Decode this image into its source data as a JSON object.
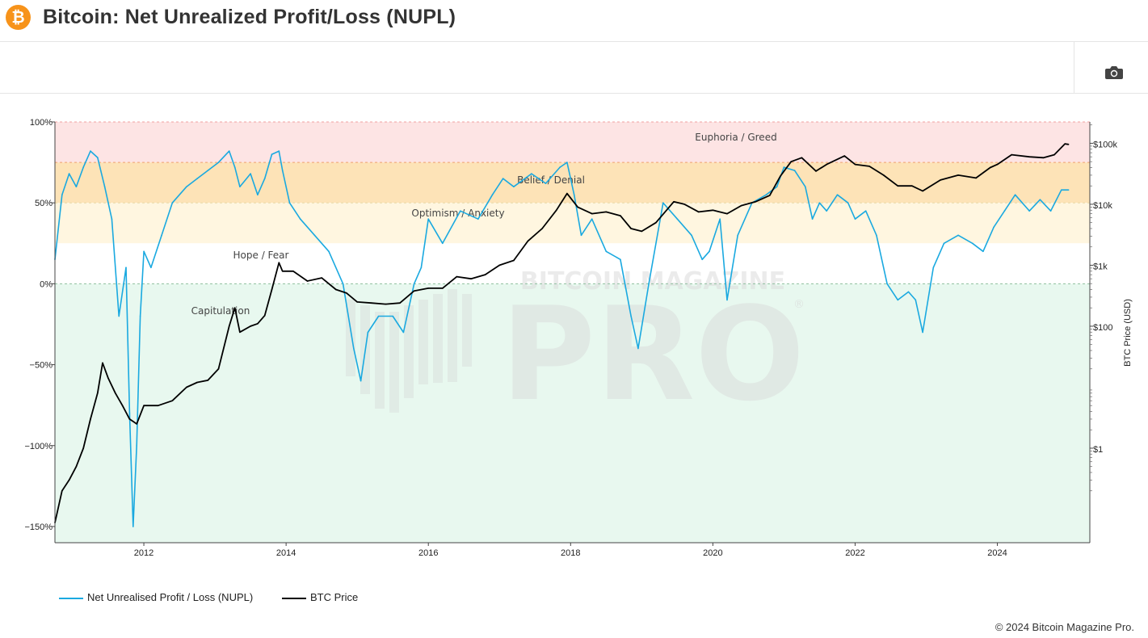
{
  "header": {
    "title": "Bitcoin: Net Unrealized Profit/Loss (NUPL)",
    "logo_glyph": "₿",
    "brand_color": "#f7931a"
  },
  "toolbar": {
    "camera_icon": "camera-icon"
  },
  "chart_data": {
    "type": "line",
    "title": "Bitcoin: Net Unrealized Profit/Loss (NUPL)",
    "x_axis": {
      "ticks": [
        "2012",
        "2014",
        "2016",
        "2018",
        "2020",
        "2022",
        "2024"
      ],
      "range": [
        2010.75,
        2025.3
      ]
    },
    "y_left": {
      "ticks": [
        "100%",
        "50%",
        "0%",
        "−50%",
        "−100%",
        "−150%"
      ],
      "range": [
        -160,
        100
      ]
    },
    "y_right": {
      "label": "BTC Price (USD)",
      "ticks": [
        "$100k",
        "$10k",
        "$1k",
        "$100",
        "$1"
      ],
      "scale": "log",
      "range_log10": [
        -1.55,
        5.35
      ]
    },
    "zones": [
      {
        "name": "Euphoria / Greed",
        "from": 75,
        "to": 100,
        "color": "#fde4e4"
      },
      {
        "name": "Belief / Denial",
        "from": 50,
        "to": 75,
        "color": "#fde3b7"
      },
      {
        "name": "Optimism / Anxiety",
        "from": 25,
        "to": 50,
        "color": "#fff6e0"
      },
      {
        "name": "Hope / Fear",
        "from": 0,
        "to": 25,
        "color": "#ffffff"
      },
      {
        "name": "Capitulation",
        "from": -160,
        "to": 0,
        "color": "#e8f8ef"
      }
    ],
    "series": [
      {
        "name": "Net Unrealised Profit / Loss (NUPL)",
        "color": "#1aa9e0",
        "axis": "left",
        "x": [
          2010.75,
          2010.85,
          2010.95,
          2011.05,
          2011.15,
          2011.25,
          2011.35,
          2011.45,
          2011.55,
          2011.65,
          2011.75,
          2011.8,
          2011.85,
          2011.9,
          2011.95,
          2012.0,
          2012.1,
          2012.25,
          2012.4,
          2012.6,
          2012.75,
          2012.9,
          2013.05,
          2013.2,
          2013.28,
          2013.35,
          2013.5,
          2013.6,
          2013.7,
          2013.8,
          2013.9,
          2013.95,
          2014.05,
          2014.2,
          2014.4,
          2014.6,
          2014.8,
          2014.95,
          2015.05,
          2015.15,
          2015.3,
          2015.5,
          2015.65,
          2015.8,
          2015.9,
          2016.0,
          2016.2,
          2016.45,
          2016.7,
          2016.9,
          2017.05,
          2017.2,
          2017.45,
          2017.65,
          2017.85,
          2017.95,
          2018.05,
          2018.15,
          2018.3,
          2018.5,
          2018.7,
          2018.85,
          2018.95,
          2019.1,
          2019.3,
          2019.5,
          2019.7,
          2019.85,
          2019.95,
          2020.1,
          2020.2,
          2020.35,
          2020.55,
          2020.75,
          2020.9,
          2021.0,
          2021.15,
          2021.3,
          2021.4,
          2021.5,
          2021.6,
          2021.75,
          2021.9,
          2022.0,
          2022.15,
          2022.3,
          2022.45,
          2022.6,
          2022.75,
          2022.85,
          2022.95,
          2023.1,
          2023.25,
          2023.45,
          2023.65,
          2023.8,
          2023.95,
          2024.1,
          2024.25,
          2024.45,
          2024.6,
          2024.75,
          2024.9,
          2025.0
        ],
        "y": [
          15,
          55,
          68,
          60,
          72,
          82,
          78,
          60,
          40,
          -20,
          10,
          -80,
          -150,
          -100,
          -20,
          20,
          10,
          30,
          50,
          60,
          65,
          70,
          75,
          82,
          72,
          60,
          68,
          55,
          65,
          80,
          82,
          70,
          50,
          40,
          30,
          20,
          0,
          -40,
          -60,
          -30,
          -20,
          -20,
          -30,
          0,
          10,
          40,
          25,
          45,
          40,
          55,
          65,
          60,
          68,
          62,
          72,
          75,
          55,
          30,
          40,
          20,
          15,
          -20,
          -40,
          0,
          50,
          40,
          30,
          15,
          20,
          40,
          -10,
          30,
          50,
          55,
          60,
          72,
          70,
          60,
          40,
          50,
          45,
          55,
          50,
          40,
          45,
          30,
          0,
          -10,
          -5,
          -10,
          -30,
          10,
          25,
          30,
          25,
          20,
          35,
          45,
          55,
          45,
          52,
          45,
          58,
          58
        ]
      },
      {
        "name": "BTC Price",
        "color": "#000000",
        "axis": "right",
        "x": [
          2010.75,
          2010.85,
          2010.95,
          2011.05,
          2011.15,
          2011.25,
          2011.35,
          2011.42,
          2011.5,
          2011.6,
          2011.7,
          2011.8,
          2011.9,
          2012.0,
          2012.2,
          2012.4,
          2012.6,
          2012.75,
          2012.9,
          2013.05,
          2013.2,
          2013.28,
          2013.35,
          2013.5,
          2013.6,
          2013.7,
          2013.8,
          2013.9,
          2013.95,
          2014.1,
          2014.3,
          2014.5,
          2014.7,
          2014.85,
          2015.0,
          2015.2,
          2015.4,
          2015.6,
          2015.8,
          2016.0,
          2016.2,
          2016.4,
          2016.6,
          2016.8,
          2017.0,
          2017.2,
          2017.4,
          2017.6,
          2017.8,
          2017.95,
          2018.1,
          2018.3,
          2018.5,
          2018.7,
          2018.85,
          2019.0,
          2019.2,
          2019.45,
          2019.6,
          2019.8,
          2020.0,
          2020.2,
          2020.4,
          2020.6,
          2020.8,
          2020.95,
          2021.1,
          2021.25,
          2021.45,
          2021.6,
          2021.85,
          2022.0,
          2022.2,
          2022.4,
          2022.6,
          2022.8,
          2022.95,
          2023.2,
          2023.45,
          2023.7,
          2023.9,
          2024.0,
          2024.2,
          2024.45,
          2024.65,
          2024.8,
          2024.95,
          2025.0
        ],
        "y": [
          0.06,
          0.2,
          0.3,
          0.5,
          1,
          3,
          8,
          25,
          14,
          8,
          5,
          3,
          2.5,
          5,
          5,
          6,
          10,
          12,
          13,
          20,
          100,
          200,
          80,
          100,
          110,
          150,
          400,
          1100,
          800,
          800,
          550,
          620,
          400,
          350,
          250,
          240,
          230,
          240,
          380,
          420,
          420,
          650,
          600,
          700,
          1000,
          1200,
          2500,
          4000,
          8000,
          15000,
          9000,
          7000,
          7500,
          6500,
          4000,
          3600,
          5000,
          11000,
          10000,
          7500,
          8000,
          7000,
          9500,
          11000,
          14000,
          29000,
          50000,
          58000,
          35000,
          45000,
          62000,
          45000,
          42000,
          30000,
          20000,
          20000,
          16500,
          25000,
          30000,
          27000,
          40000,
          45000,
          65000,
          60000,
          58000,
          65000,
          98000,
          96000
        ]
      }
    ],
    "annotations": [
      "Euphoria / Greed",
      "Belief / Denial",
      "Optimism / Anxiety",
      "Hope / Fear",
      "Capitulation"
    ],
    "legend": [
      {
        "label": "Net Unrealised Profit / Loss (NUPL)",
        "color": "#1aa9e0"
      },
      {
        "label": "BTC Price",
        "color": "#000000"
      }
    ],
    "watermark": {
      "top": "BITCOIN MAGAZINE",
      "main": "PRO",
      "mark": "®"
    }
  },
  "footer": {
    "copyright": "© 2024 Bitcoin Magazine Pro."
  }
}
